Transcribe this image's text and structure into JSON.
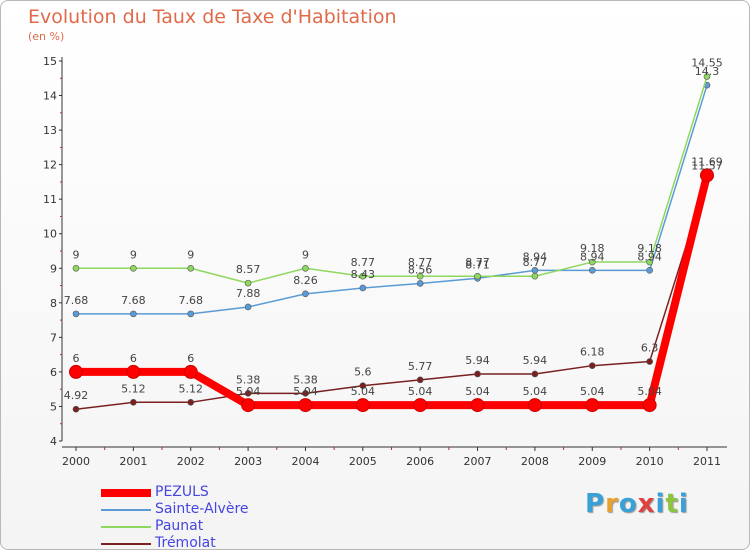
{
  "title": "Evolution du Taux de Taxe d'Habitation",
  "unit_label": "(en %)",
  "logo": {
    "text": "Proxiti",
    "colors": [
      "#3aa0d8",
      "#e8a030",
      "#3aa0d8",
      "#e04040",
      "#3aa0d8",
      "#8cc63f",
      "#3aa0d8"
    ]
  },
  "chart_data": {
    "type": "line",
    "x": [
      "2000",
      "2001",
      "2002",
      "2003",
      "2004",
      "2005",
      "2006",
      "2007",
      "2008",
      "2009",
      "2010",
      "2011"
    ],
    "ylim": [
      4,
      15
    ],
    "yticks": [
      "4",
      "5",
      "6",
      "7",
      "8",
      "9",
      "10",
      "11",
      "12",
      "13",
      "14",
      "15"
    ],
    "grid": false,
    "legend_position": "bottom-left",
    "series": [
      {
        "name": "PEZULS",
        "color": "#ff0000",
        "values": [
          6,
          6,
          6,
          5.04,
          5.04,
          5.04,
          5.04,
          5.04,
          5.04,
          5.04,
          5.04,
          11.69
        ],
        "labels": [
          "6",
          "6",
          "6",
          "5.04",
          "5.04",
          "5.04",
          "5.04",
          "5.04",
          "5.04",
          "5.04",
          "5.04",
          "11.69"
        ]
      },
      {
        "name": "Sainte-Alvère",
        "color": "#5b9bd5",
        "values": [
          7.68,
          7.68,
          7.68,
          7.88,
          8.26,
          8.43,
          8.56,
          8.71,
          8.94,
          8.94,
          8.94,
          14.3
        ],
        "labels": [
          "7.68",
          "7.68",
          "7.68",
          "7.88",
          "8.26",
          "8.43",
          "8.56",
          "8.71",
          "8.94",
          "8.94",
          "8.94",
          "14.3"
        ]
      },
      {
        "name": "Paunat",
        "color": "#8ed860",
        "values": [
          9,
          9,
          9,
          8.57,
          9,
          8.77,
          8.77,
          8.77,
          8.77,
          9.18,
          9.18,
          14.55
        ],
        "labels": [
          "9",
          "9",
          "9",
          "8.57",
          "9",
          "8.77",
          "8.77",
          "8.77",
          "8.77",
          "9.18",
          "9.18",
          "14.55"
        ]
      },
      {
        "name": "Trémolat",
        "color": "#7a2020",
        "values": [
          4.92,
          5.12,
          5.12,
          5.38,
          5.38,
          5.6,
          5.77,
          5.94,
          5.94,
          6.18,
          6.3,
          11.57
        ],
        "labels": [
          "4.92",
          "5.12",
          "5.12",
          "5.38",
          "5.38",
          "5.6",
          "5.77",
          "5.94",
          "5.94",
          "6.18",
          "6.3",
          "11.57"
        ]
      }
    ]
  }
}
